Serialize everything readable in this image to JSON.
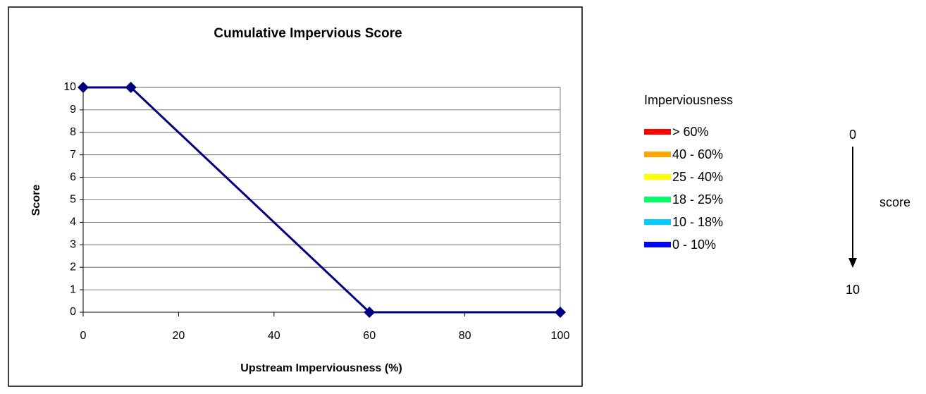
{
  "chart_data": {
    "type": "line",
    "title": "Cumulative Impervious Score",
    "x_label": "Upstream Imperviousness (%)",
    "y_label": "Score",
    "x": [
      0,
      10,
      60,
      100
    ],
    "values": [
      10,
      10,
      0,
      0
    ],
    "color": "#000080",
    "xlim": [
      0,
      100
    ],
    "xticks": [
      0,
      20,
      40,
      60,
      80,
      100
    ],
    "ylim": [
      0,
      10
    ],
    "yticks": [
      0,
      1,
      2,
      3,
      4,
      5,
      6,
      7,
      8,
      9,
      10
    ],
    "grid": true
  },
  "legend": {
    "title": "Imperviousness",
    "items": [
      {
        "label": "> 60%",
        "color": "#ff0000"
      },
      {
        "label": "40 - 60%",
        "color": "#ffa500"
      },
      {
        "label": "25 - 40%",
        "color": "#ffff00"
      },
      {
        "label": "18 - 25%",
        "color": "#00ff66"
      },
      {
        "label": "10 - 18%",
        "color": "#00ccff"
      },
      {
        "label": "0 - 10%",
        "color": "#0000ff"
      }
    ]
  },
  "scale": {
    "top": 0,
    "bottom": 10,
    "label": "score"
  }
}
